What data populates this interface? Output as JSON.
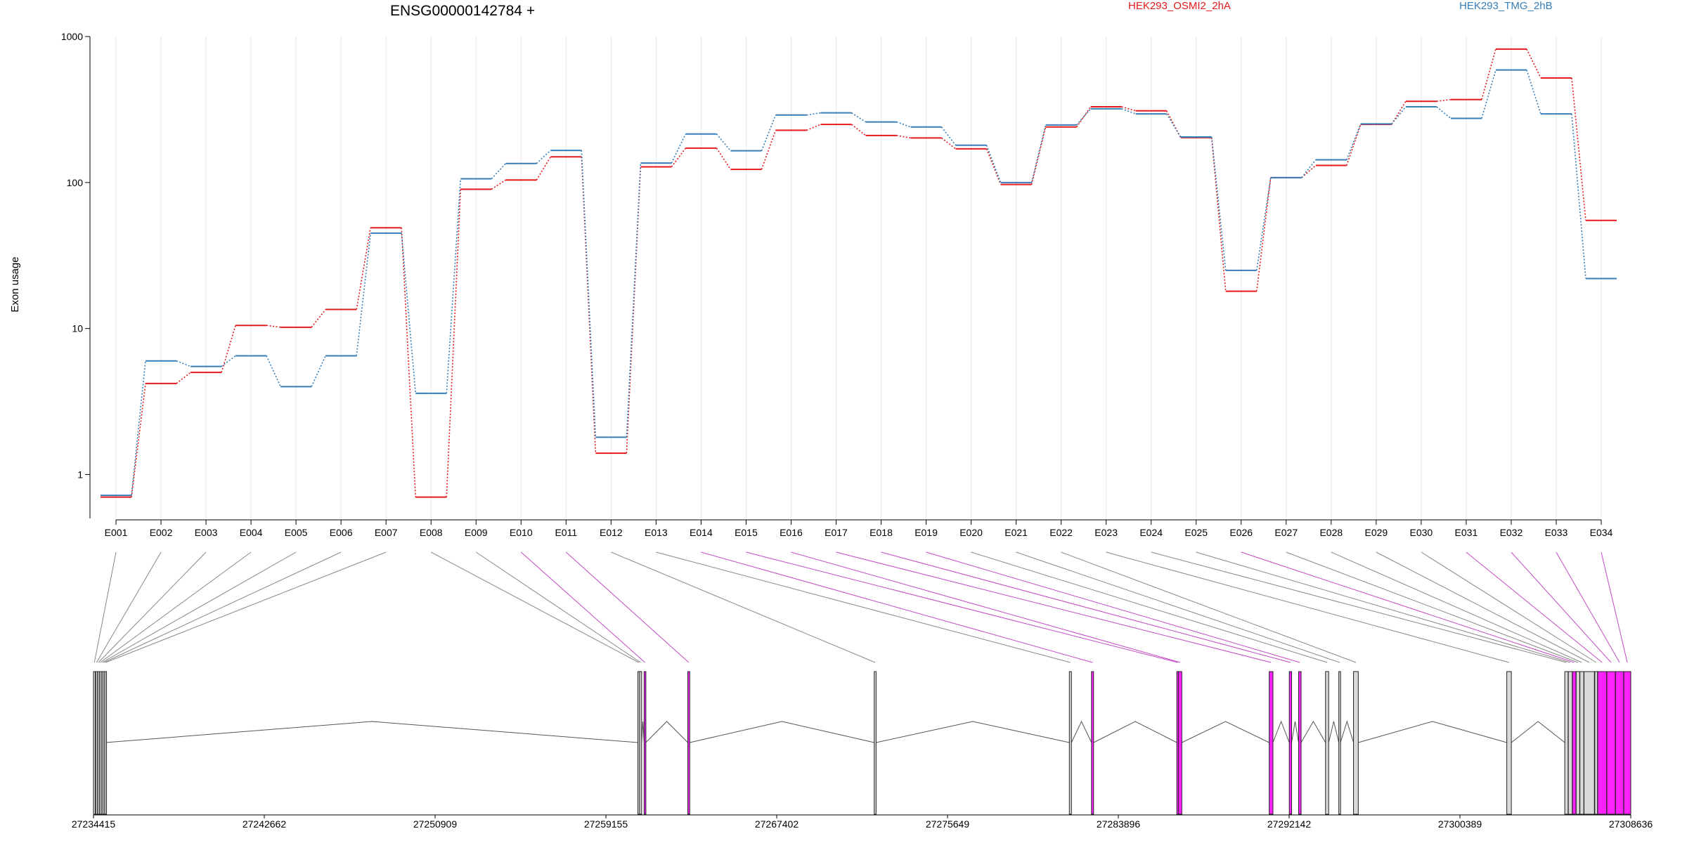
{
  "chart_data": {
    "type": "line",
    "title": "ENSG00000142784 +",
    "ylabel": "Exon usage",
    "xlabel": "",
    "y_scale": "log",
    "ylim": [
      0.5,
      1000
    ],
    "yticks": [
      1,
      10,
      100,
      1000
    ],
    "ytick_labels": [
      "1",
      "10",
      "100",
      "1000"
    ],
    "grid": "vertical",
    "legend_placement": "top",
    "categories": [
      "E001",
      "E002",
      "E003",
      "E004",
      "E005",
      "E006",
      "E007",
      "E008",
      "E009",
      "E010",
      "E011",
      "E012",
      "E013",
      "E014",
      "E015",
      "E016",
      "E017",
      "E018",
      "E019",
      "E020",
      "E021",
      "E022",
      "E023",
      "E024",
      "E025",
      "E026",
      "E027",
      "E028",
      "E029",
      "E030",
      "E031",
      "E032",
      "E033",
      "E034"
    ],
    "series": [
      {
        "name": "HEK293_OSMI2_2hA",
        "color": "#e41a1c",
        "values": [
          0.7,
          4.2,
          5.0,
          10.5,
          10.2,
          13.5,
          49,
          0.7,
          90,
          104,
          150,
          1.4,
          128,
          172,
          123,
          228,
          250,
          210,
          202,
          170,
          97,
          240,
          330,
          310,
          203,
          18,
          108,
          131,
          250,
          360,
          370,
          820,
          520,
          55
        ]
      },
      {
        "name": "HEK293_TMG_2hB",
        "color": "#377eb8",
        "values": [
          0.72,
          6.0,
          5.5,
          6.5,
          4.0,
          6.5,
          45,
          3.6,
          106,
          135,
          166,
          1.8,
          136,
          215,
          165,
          290,
          300,
          260,
          240,
          180,
          100,
          248,
          320,
          295,
          205,
          25,
          108,
          143,
          252,
          330,
          275,
          590,
          295,
          22
        ]
      }
    ],
    "gene_model": {
      "coord_labels": [
        "27234415",
        "27242662",
        "27250909",
        "27259155",
        "27267402",
        "27275649",
        "27283896",
        "27292142",
        "27300389",
        "27308636"
      ],
      "highlight_color": "#ff22ff",
      "exon_color": "#d9d9d9",
      "exon_highlighted": [
        false,
        false,
        false,
        false,
        false,
        false,
        false,
        false,
        false,
        true,
        true,
        false,
        false,
        true,
        true,
        true,
        true,
        true,
        true,
        false,
        false,
        false,
        false,
        false,
        false,
        true,
        false,
        false,
        false,
        false,
        true,
        true,
        true,
        true
      ],
      "exon_start": [
        27234415,
        27234520,
        27234610,
        27234700,
        27234790,
        27234870,
        27234960,
        27260700,
        27260780,
        27261000,
        27263110,
        27272110,
        27281530,
        27282600,
        27286720,
        27286800,
        27291180,
        27292150,
        27292600,
        27293900,
        27294540,
        27295250,
        27302650,
        27305450,
        27305620,
        27305820,
        27306000,
        27306180,
        27306380,
        27306900,
        27307040,
        27307480,
        27307900,
        27308300
      ],
      "exon_end": [
        27234480,
        27234570,
        27234660,
        27234750,
        27234830,
        27234920,
        27235000,
        27260770,
        27260880,
        27261080,
        27263200,
        27272200,
        27281630,
        27282700,
        27286780,
        27286960,
        27291360,
        27292260,
        27292720,
        27294050,
        27294620,
        27295480,
        27302870,
        27305610,
        27305810,
        27305990,
        27306170,
        27306370,
        27306880,
        27307030,
        27307470,
        27307890,
        27308290,
        27308636
      ]
    }
  }
}
